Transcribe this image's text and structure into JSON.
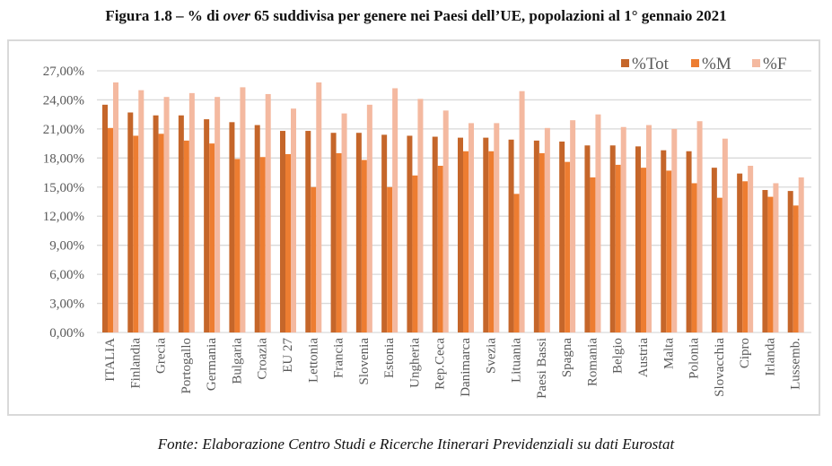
{
  "title": {
    "prefix": "Figura 1.8 – % di ",
    "italic": "over",
    "suffix": " 65 suddivisa per genere nei Paesi dell’UE, popolazioni al 1° gennaio 2021"
  },
  "footer": "Fonte: Elaborazione Centro Studi e Ricerche Itinerari Previdenziali su dati Eurostat",
  "chart_data": {
    "type": "bar",
    "title": "Figura 1.8 – % di over 65 suddivisa per genere nei Paesi dell’UE, popolazioni al 1° gennaio 2021",
    "xlabel": "",
    "ylabel": "",
    "ylim": [
      0,
      27
    ],
    "yticks": [
      0,
      3,
      6,
      9,
      12,
      15,
      18,
      21,
      24,
      27
    ],
    "ytick_labels": [
      "0,00%",
      "3,00%",
      "6,00%",
      "9,00%",
      "12,00%",
      "15,00%",
      "18,00%",
      "21,00%",
      "24,00%",
      "27,00%"
    ],
    "grid": true,
    "legend_position": "top-right",
    "categories": [
      "ITALIA",
      "Finlandia",
      "Grecia",
      "Portogallo",
      "Germania",
      "Bulgaria",
      "Croazia",
      "EU 27",
      "Lettonia",
      "Francia",
      "Slovenia",
      "Estonia",
      "Ungheria",
      "Rep.Ceca",
      "Danimarca",
      "Svezia",
      "Lituania",
      "Paesi Bassi",
      "Spagna",
      "Romania",
      "Belgio",
      "Austria",
      "Malta",
      "Polonia",
      "Slovacchia",
      "Cipro",
      "Irlanda",
      "Lussemb."
    ],
    "series": [
      {
        "name": "%Tot",
        "color": "#c5662a",
        "values": [
          23.5,
          22.7,
          22.4,
          22.4,
          22.0,
          21.7,
          21.4,
          20.8,
          20.8,
          20.6,
          20.6,
          20.4,
          20.3,
          20.2,
          20.1,
          20.1,
          19.9,
          19.8,
          19.7,
          19.3,
          19.3,
          19.2,
          18.8,
          18.7,
          17.0,
          16.4,
          14.7,
          14.6
        ]
      },
      {
        "name": "%M",
        "color": "#ed7d31",
        "values": [
          21.1,
          20.3,
          20.5,
          19.8,
          19.5,
          17.9,
          18.1,
          18.4,
          15.0,
          18.5,
          17.8,
          15.0,
          16.2,
          17.2,
          18.7,
          18.7,
          14.3,
          18.5,
          17.6,
          16.0,
          17.3,
          17.0,
          16.7,
          15.4,
          13.9,
          15.6,
          14.0,
          13.1
        ]
      },
      {
        "name": "%F",
        "color": "#f4b9a0",
        "values": [
          25.8,
          25.0,
          24.3,
          24.7,
          24.3,
          25.3,
          24.6,
          23.1,
          25.8,
          22.6,
          23.5,
          25.2,
          24.1,
          22.9,
          21.6,
          21.6,
          24.9,
          21.1,
          21.9,
          22.5,
          21.2,
          21.4,
          21.0,
          21.8,
          20.0,
          17.2,
          15.4,
          16.0
        ]
      }
    ]
  }
}
